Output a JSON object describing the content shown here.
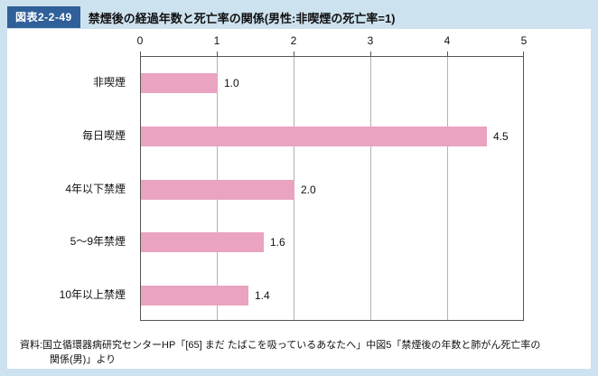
{
  "colors": {
    "background": "#cde2ef",
    "badge_bg": "#30609a",
    "bar": "#eaa3c1",
    "panel": "#ffffff"
  },
  "header": {
    "badge": "図表2-2-49",
    "title": "禁煙後の経過年数と死亡率の関係(男性:非喫煙の死亡率=1)"
  },
  "chart_data": {
    "type": "bar",
    "orientation": "horizontal",
    "axis_position": "top",
    "grid": true,
    "categories": [
      "非喫煙",
      "毎日喫煙",
      "4年以下禁煙",
      "5〜9年禁煙",
      "10年以上禁煙"
    ],
    "values": [
      1.0,
      4.5,
      2.0,
      1.6,
      1.4
    ],
    "value_labels": [
      "1.0",
      "4.5",
      "2.0",
      "1.6",
      "1.4"
    ],
    "xlim": [
      0,
      5
    ],
    "x_ticks": [
      0,
      1,
      2,
      3,
      4,
      5
    ],
    "bar_color": "#eaa3c1"
  },
  "source": {
    "line1": "資料:国立循環器病研究センターHP「[65] まだ たばこを吸っているあなたへ」中図5「禁煙後の年数と肺がん死亡率の",
    "line2": "関係(男)」より"
  }
}
